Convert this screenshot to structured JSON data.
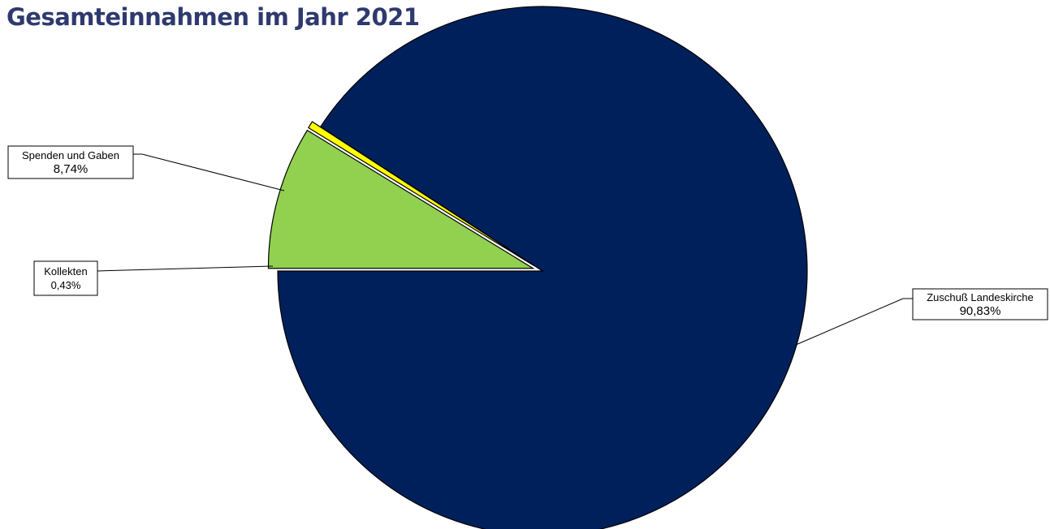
{
  "chart_data": {
    "type": "pie",
    "title": "Gesamteinnahmen im Jahr 2021",
    "slices": [
      {
        "label": "Zuschuß Landeskirche",
        "value": 90.83,
        "value_label": "90,83%",
        "color": "#00205b"
      },
      {
        "label": "Kollekten",
        "value": 0.43,
        "value_label": "0,43%",
        "color": "#ffff00"
      },
      {
        "label": "Spenden und Gaben",
        "value": 8.74,
        "value_label": "8,74%",
        "color": "#92d050"
      }
    ],
    "legend": "none"
  }
}
